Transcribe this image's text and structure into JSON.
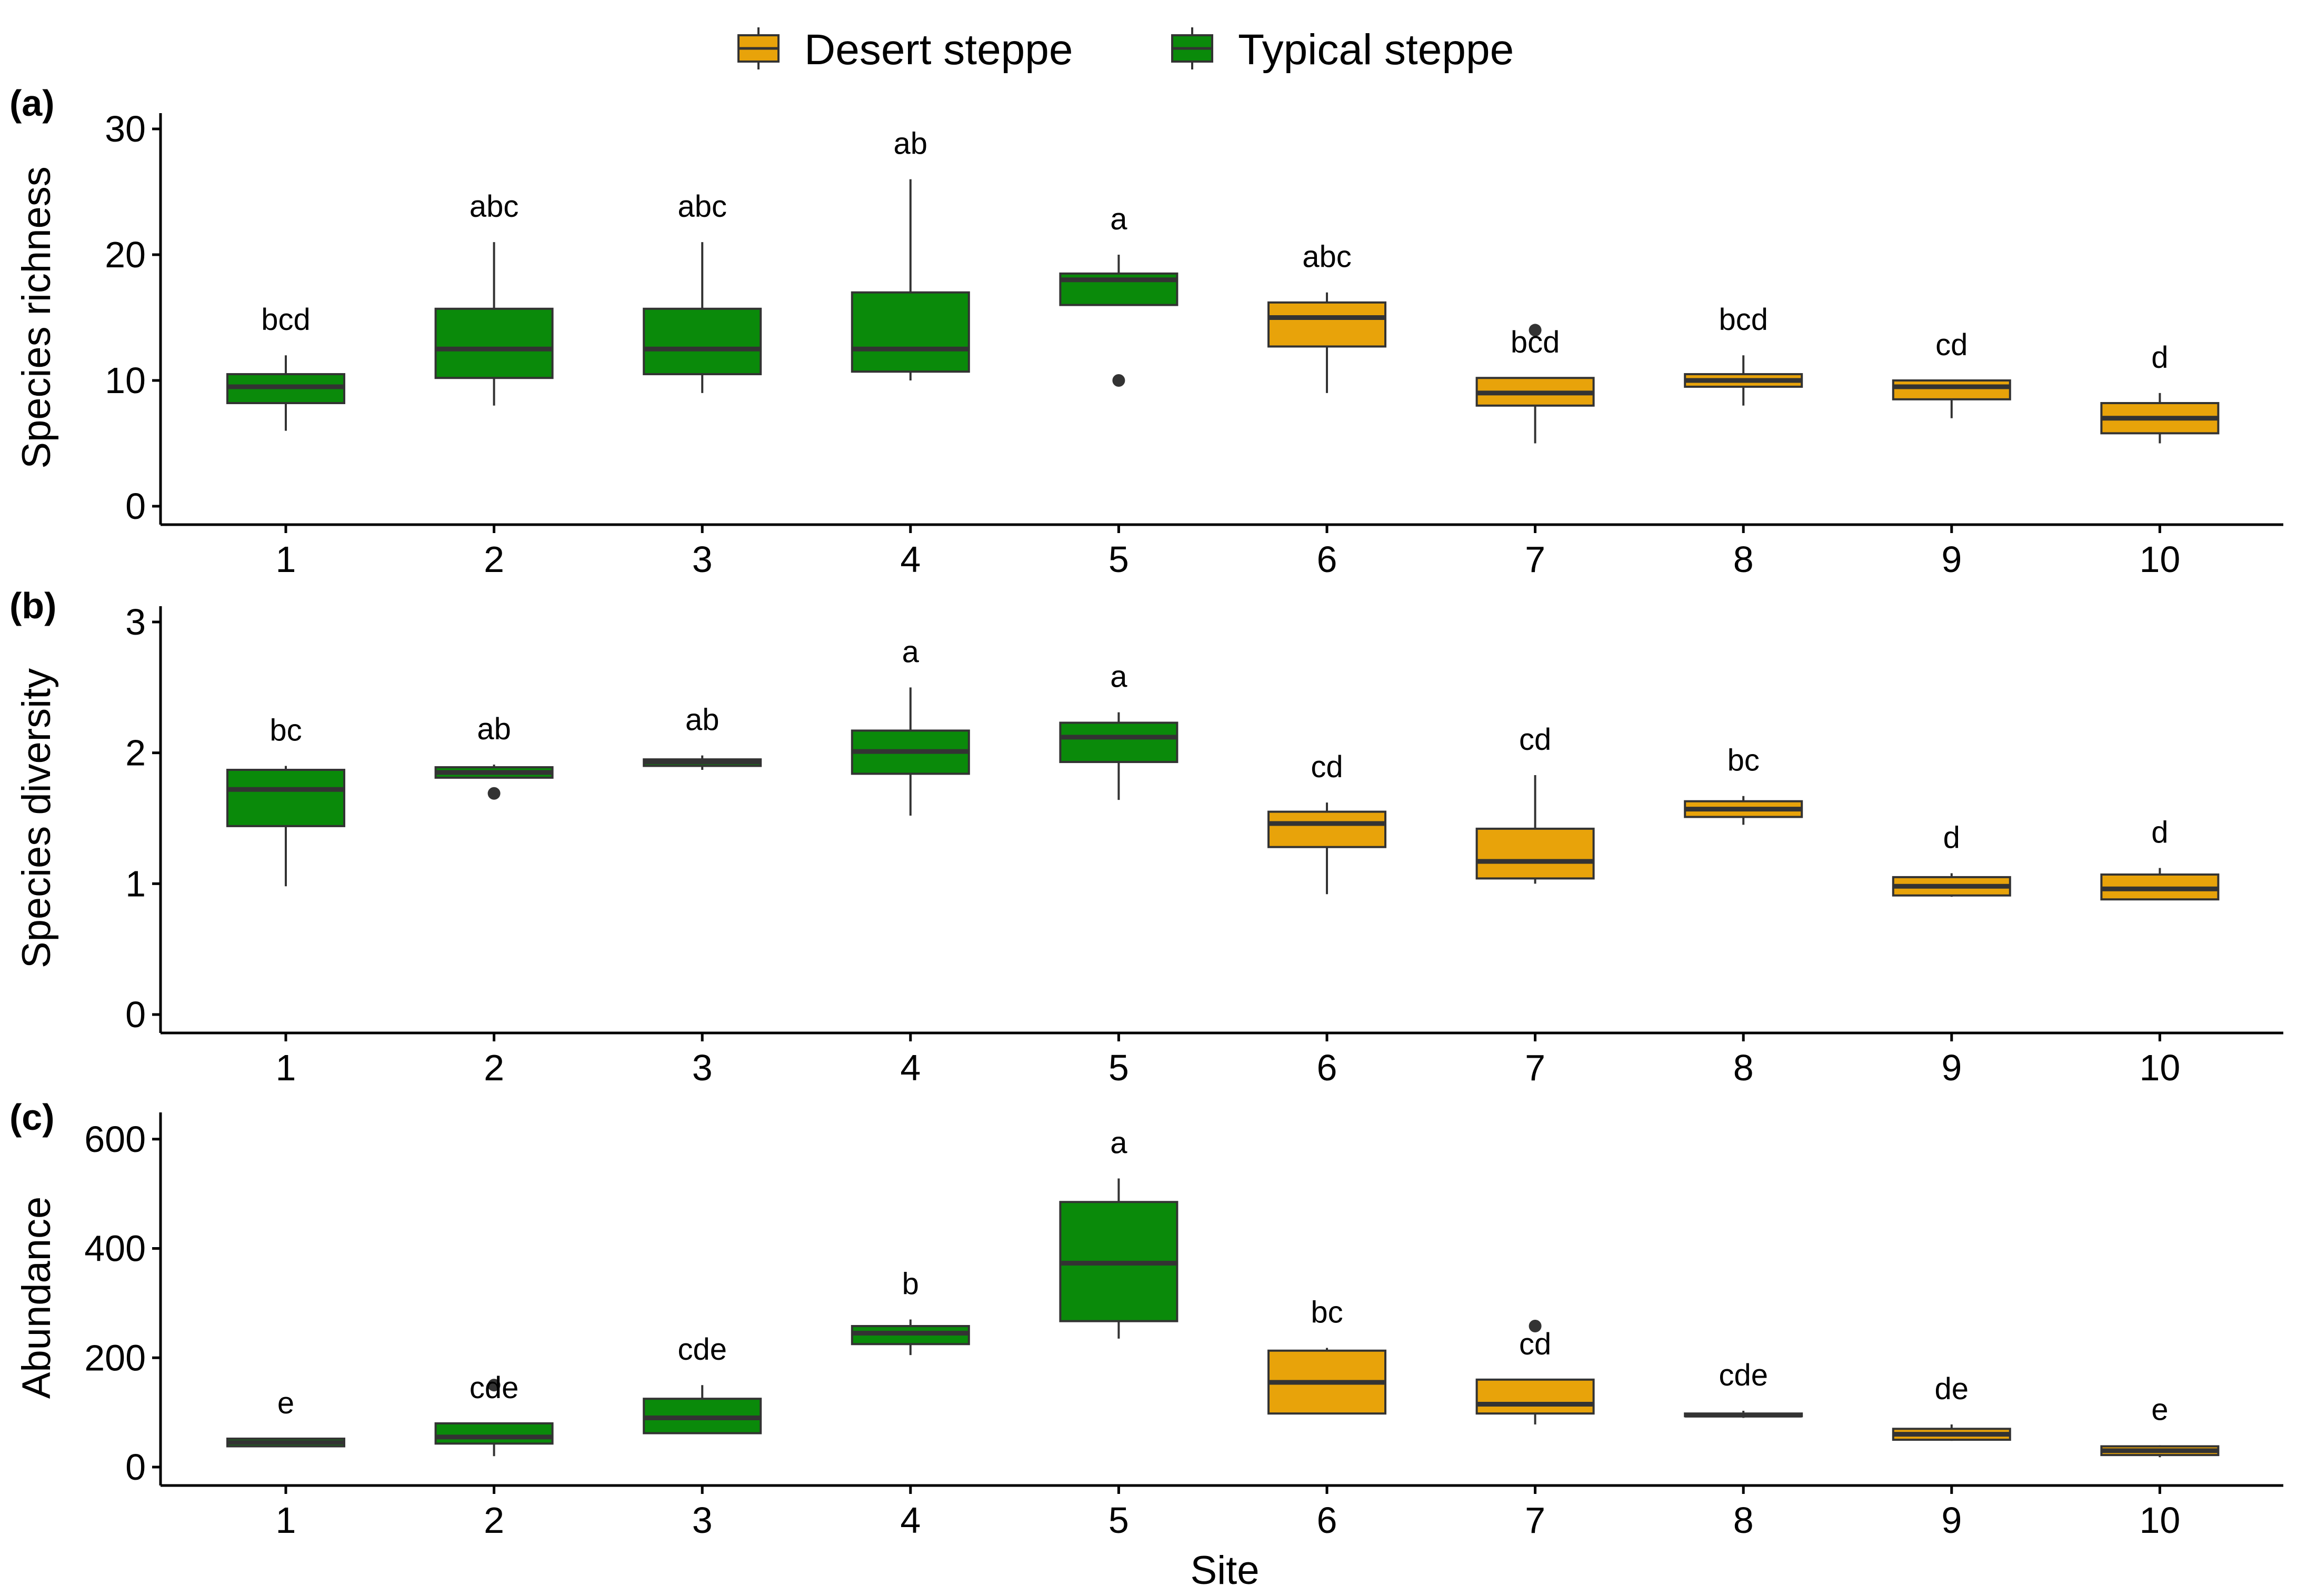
{
  "legend": {
    "position": "top-center",
    "items": [
      {
        "label": "Desert steppe",
        "color": "#E8A30A"
      },
      {
        "label": "Typical steppe",
        "color": "#0A8A0A"
      }
    ]
  },
  "axis": {
    "xlabel": "Site"
  },
  "chart_data": [
    {
      "type": "boxplot",
      "panel_label": "(a)",
      "ylabel": "Species richness",
      "ylim": [
        0,
        30
      ],
      "yticks": [
        0,
        10,
        20,
        30
      ],
      "categories": [
        "1",
        "2",
        "3",
        "4",
        "5",
        "6",
        "7",
        "8",
        "9",
        "10"
      ],
      "boxes": [
        {
          "site": "1",
          "group": "Typical steppe",
          "min": 6,
          "q1": 8.2,
          "median": 9.5,
          "q3": 10.5,
          "max": 12,
          "outliers": [],
          "letter": "bcd"
        },
        {
          "site": "2",
          "group": "Typical steppe",
          "min": 8,
          "q1": 10.2,
          "median": 12.5,
          "q3": 15.7,
          "max": 21,
          "outliers": [],
          "letter": "abc"
        },
        {
          "site": "3",
          "group": "Typical steppe",
          "min": 9,
          "q1": 10.5,
          "median": 12.5,
          "q3": 15.7,
          "max": 21,
          "outliers": [],
          "letter": "abc"
        },
        {
          "site": "4",
          "group": "Typical steppe",
          "min": 10,
          "q1": 10.7,
          "median": 12.5,
          "q3": 17,
          "max": 26,
          "outliers": [],
          "letter": "ab"
        },
        {
          "site": "5",
          "group": "Typical steppe",
          "min": 16,
          "q1": 16,
          "median": 18,
          "q3": 18.5,
          "max": 20,
          "outliers": [
            10
          ],
          "letter": "a"
        },
        {
          "site": "6",
          "group": "Desert steppe",
          "min": 9,
          "q1": 12.7,
          "median": 15,
          "q3": 16.2,
          "max": 17,
          "outliers": [],
          "letter": "abc"
        },
        {
          "site": "7",
          "group": "Desert steppe",
          "min": 5,
          "q1": 8,
          "median": 9,
          "q3": 10.2,
          "max": 10.2,
          "outliers": [
            14
          ],
          "letter": "bcd"
        },
        {
          "site": "8",
          "group": "Desert steppe",
          "min": 8,
          "q1": 9.5,
          "median": 10,
          "q3": 10.5,
          "max": 12,
          "outliers": [],
          "letter": "bcd"
        },
        {
          "site": "9",
          "group": "Desert steppe",
          "min": 7,
          "q1": 8.5,
          "median": 9.5,
          "q3": 10,
          "max": 10,
          "outliers": [],
          "letter": "cd"
        },
        {
          "site": "10",
          "group": "Desert steppe",
          "min": 5,
          "q1": 5.8,
          "median": 7,
          "q3": 8.2,
          "max": 9,
          "outliers": [],
          "letter": "d"
        }
      ]
    },
    {
      "type": "boxplot",
      "panel_label": "(b)",
      "ylabel": "Species diversity",
      "ylim": [
        0,
        3
      ],
      "yticks": [
        0,
        1,
        2,
        3
      ],
      "categories": [
        "1",
        "2",
        "3",
        "4",
        "5",
        "6",
        "7",
        "8",
        "9",
        "10"
      ],
      "boxes": [
        {
          "site": "1",
          "group": "Typical steppe",
          "min": 0.98,
          "q1": 1.44,
          "median": 1.72,
          "q3": 1.87,
          "max": 1.9,
          "outliers": [],
          "letter": "bc"
        },
        {
          "site": "2",
          "group": "Typical steppe",
          "min": 1.81,
          "q1": 1.81,
          "median": 1.85,
          "q3": 1.89,
          "max": 1.91,
          "outliers": [
            1.69
          ],
          "letter": "ab"
        },
        {
          "site": "3",
          "group": "Typical steppe",
          "min": 1.87,
          "q1": 1.9,
          "median": 1.93,
          "q3": 1.95,
          "max": 1.98,
          "outliers": [],
          "letter": "ab"
        },
        {
          "site": "4",
          "group": "Typical steppe",
          "min": 1.52,
          "q1": 1.84,
          "median": 2.01,
          "q3": 2.17,
          "max": 2.5,
          "outliers": [],
          "letter": "a"
        },
        {
          "site": "5",
          "group": "Typical steppe",
          "min": 1.64,
          "q1": 1.93,
          "median": 2.12,
          "q3": 2.23,
          "max": 2.31,
          "outliers": [],
          "letter": "a"
        },
        {
          "site": "6",
          "group": "Desert steppe",
          "min": 0.92,
          "q1": 1.28,
          "median": 1.46,
          "q3": 1.55,
          "max": 1.62,
          "outliers": [],
          "letter": "cd"
        },
        {
          "site": "7",
          "group": "Desert steppe",
          "min": 1.0,
          "q1": 1.04,
          "median": 1.17,
          "q3": 1.42,
          "max": 1.83,
          "outliers": [],
          "letter": "cd"
        },
        {
          "site": "8",
          "group": "Desert steppe",
          "min": 1.45,
          "q1": 1.51,
          "median": 1.57,
          "q3": 1.63,
          "max": 1.67,
          "outliers": [],
          "letter": "bc"
        },
        {
          "site": "9",
          "group": "Desert steppe",
          "min": 0.9,
          "q1": 0.91,
          "median": 0.98,
          "q3": 1.05,
          "max": 1.08,
          "outliers": [],
          "letter": "d"
        },
        {
          "site": "10",
          "group": "Desert steppe",
          "min": 0.88,
          "q1": 0.88,
          "median": 0.96,
          "q3": 1.07,
          "max": 1.12,
          "outliers": [],
          "letter": "d"
        }
      ]
    },
    {
      "type": "boxplot",
      "panel_label": "(c)",
      "ylabel": "Abundance",
      "ylim": [
        0,
        620
      ],
      "yticks": [
        0,
        200,
        400,
        600
      ],
      "categories": [
        "1",
        "2",
        "3",
        "4",
        "5",
        "6",
        "7",
        "8",
        "9",
        "10"
      ],
      "boxes": [
        {
          "site": "1",
          "group": "Typical steppe",
          "min": 38,
          "q1": 38,
          "median": 45,
          "q3": 52,
          "max": 52,
          "outliers": [],
          "letter": "e"
        },
        {
          "site": "2",
          "group": "Typical steppe",
          "min": 20,
          "q1": 43,
          "median": 55,
          "q3": 80,
          "max": 80,
          "outliers": [
            150
          ],
          "letter": "cde"
        },
        {
          "site": "3",
          "group": "Typical steppe",
          "min": 62,
          "q1": 62,
          "median": 90,
          "q3": 125,
          "max": 150,
          "outliers": [],
          "letter": "cde"
        },
        {
          "site": "4",
          "group": "Typical steppe",
          "min": 205,
          "q1": 225,
          "median": 245,
          "q3": 258,
          "max": 270,
          "outliers": [],
          "letter": "b"
        },
        {
          "site": "5",
          "group": "Typical steppe",
          "min": 235,
          "q1": 267,
          "median": 373,
          "q3": 485,
          "max": 528,
          "outliers": [],
          "letter": "a"
        },
        {
          "site": "6",
          "group": "Desert steppe",
          "min": 98,
          "q1": 98,
          "median": 155,
          "q3": 213,
          "max": 218,
          "outliers": [],
          "letter": "bc"
        },
        {
          "site": "7",
          "group": "Desert steppe",
          "min": 78,
          "q1": 98,
          "median": 115,
          "q3": 160,
          "max": 160,
          "outliers": [
            258
          ],
          "letter": "cd"
        },
        {
          "site": "8",
          "group": "Desert steppe",
          "min": 90,
          "q1": 93,
          "median": 95,
          "q3": 98,
          "max": 103,
          "outliers": [],
          "letter": "cde"
        },
        {
          "site": "9",
          "group": "Desert steppe",
          "min": 48,
          "q1": 50,
          "median": 60,
          "q3": 70,
          "max": 78,
          "outliers": [],
          "letter": "de"
        },
        {
          "site": "10",
          "group": "Desert steppe",
          "min": 18,
          "q1": 22,
          "median": 30,
          "q3": 38,
          "max": 40,
          "outliers": [],
          "letter": "e"
        }
      ]
    }
  ]
}
